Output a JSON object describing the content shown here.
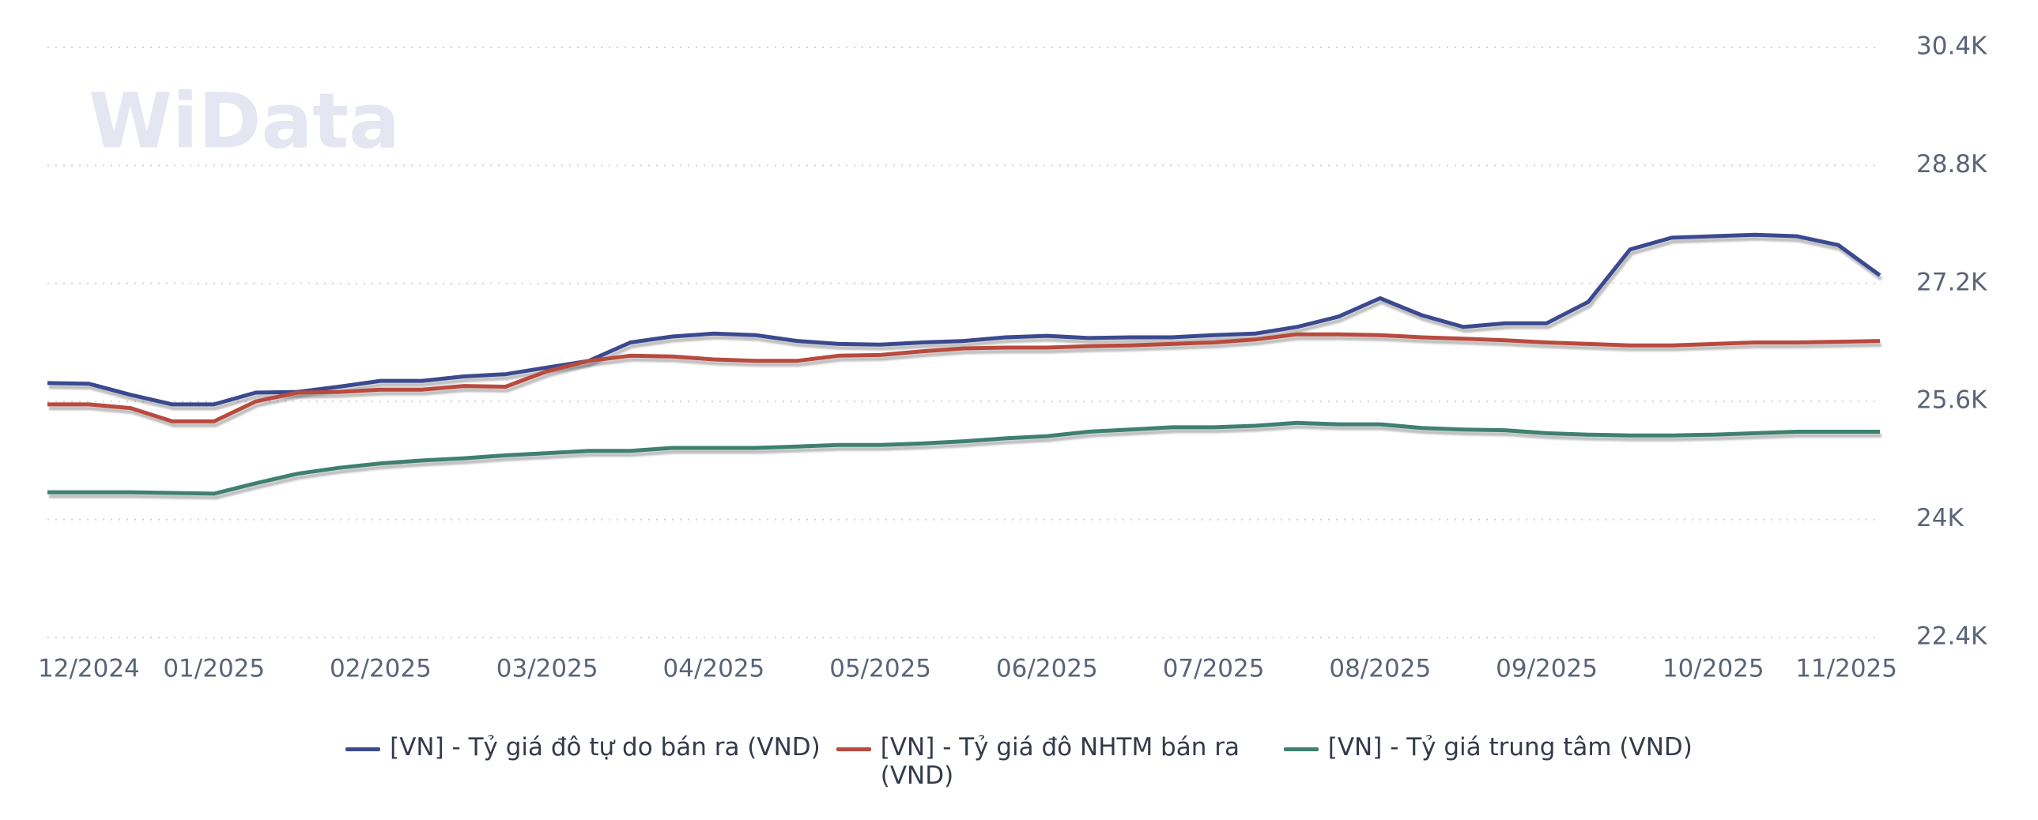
{
  "chart_data": {
    "type": "line",
    "watermark": "WiData",
    "x": [
      "12/2024",
      "12/2024",
      "12/2024",
      "12/2024",
      "01/2025",
      "01/2025",
      "01/2025",
      "01/2025",
      "02/2025",
      "02/2025",
      "02/2025",
      "02/2025",
      "03/2025",
      "03/2025",
      "03/2025",
      "03/2025",
      "04/2025",
      "04/2025",
      "04/2025",
      "04/2025",
      "05/2025",
      "05/2025",
      "05/2025",
      "05/2025",
      "06/2025",
      "06/2025",
      "06/2025",
      "06/2025",
      "07/2025",
      "07/2025",
      "07/2025",
      "07/2025",
      "08/2025",
      "08/2025",
      "08/2025",
      "08/2025",
      "09/2025",
      "09/2025",
      "09/2025",
      "09/2025",
      "10/2025",
      "10/2025",
      "10/2025",
      "10/2025",
      "11/2025"
    ],
    "xticks": [
      "12/2024",
      "01/2025",
      "02/2025",
      "03/2025",
      "04/2025",
      "05/2025",
      "06/2025",
      "07/2025",
      "08/2025",
      "09/2025",
      "10/2025",
      "11/2025"
    ],
    "series": [
      {
        "name": "[VN] - Tỷ giá đô tự do bán ra (VND)",
        "color": "#3b4a8f",
        "values": [
          25850,
          25840,
          25690,
          25560,
          25560,
          25720,
          25730,
          25800,
          25880,
          25880,
          25940,
          25970,
          26060,
          26150,
          26400,
          26480,
          26520,
          26500,
          26420,
          26380,
          26370,
          26400,
          26420,
          26470,
          26490,
          26460,
          26470,
          26470,
          26500,
          26520,
          26610,
          26750,
          27000,
          26770,
          26610,
          26660,
          26660,
          26950,
          27660,
          27820,
          27840,
          27860,
          27840,
          27720,
          27310
        ]
      },
      {
        "name": "[VN] - Tỷ giá đô NHTM bán ra (VND)",
        "color": "#b84a3e",
        "values": [
          25560,
          25560,
          25510,
          25330,
          25330,
          25600,
          25720,
          25730,
          25760,
          25760,
          25810,
          25800,
          26010,
          26150,
          26220,
          26210,
          26170,
          26150,
          26150,
          26220,
          26230,
          26280,
          26320,
          26330,
          26330,
          26350,
          26360,
          26380,
          26400,
          26440,
          26510,
          26510,
          26500,
          26470,
          26450,
          26430,
          26400,
          26380,
          26360,
          26360,
          26380,
          26400,
          26400,
          26410,
          26420
        ]
      },
      {
        "name": "[VN] - Tỷ giá trung tâm (VND)",
        "color": "#3f8070",
        "values": [
          24370,
          24370,
          24370,
          24360,
          24350,
          24490,
          24620,
          24700,
          24760,
          24800,
          24830,
          24870,
          24900,
          24930,
          24930,
          24970,
          24970,
          24970,
          24990,
          25010,
          25010,
          25030,
          25060,
          25100,
          25130,
          25190,
          25220,
          25250,
          25250,
          25270,
          25310,
          25290,
          25290,
          25240,
          25220,
          25210,
          25170,
          25150,
          25140,
          25140,
          25150,
          25170,
          25190,
          25190,
          25190
        ]
      }
    ],
    "ylim": [
      22400,
      30400
    ],
    "yticks": [
      {
        "value": 22400,
        "label": "22.4K"
      },
      {
        "value": 24000,
        "label": "24K"
      },
      {
        "value": 25600,
        "label": "25.6K"
      },
      {
        "value": 27200,
        "label": "27.2K"
      },
      {
        "value": 28800,
        "label": "28.8K"
      },
      {
        "value": 30400,
        "label": "30.4K"
      }
    ],
    "grid": true
  }
}
